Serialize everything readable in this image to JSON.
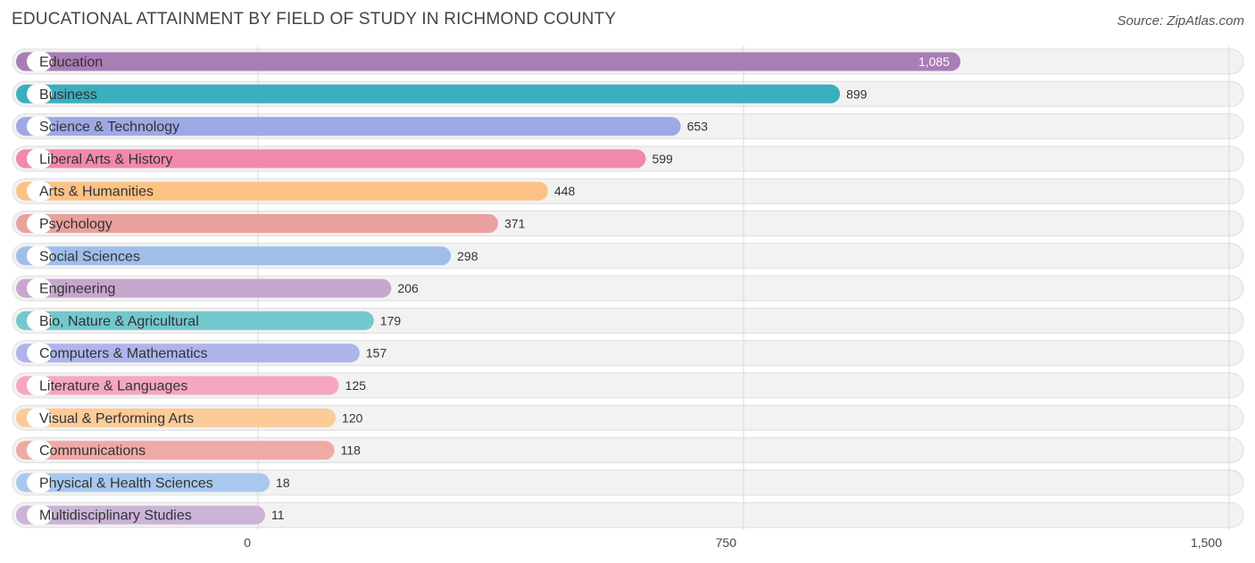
{
  "chart_data": {
    "type": "bar",
    "orientation": "horizontal",
    "title": "EDUCATIONAL ATTAINMENT BY FIELD OF STUDY IN RICHMOND COUNTY",
    "source": "Source: ZipAtlas.com",
    "categories": [
      "Education",
      "Business",
      "Science & Technology",
      "Liberal Arts & History",
      "Arts & Humanities",
      "Psychology",
      "Social Sciences",
      "Engineering",
      "Bio, Nature & Agricultural",
      "Computers & Mathematics",
      "Literature & Languages",
      "Visual & Performing Arts",
      "Communications",
      "Physical & Health Sciences",
      "Multidisciplinary Studies"
    ],
    "values": [
      1085,
      899,
      653,
      599,
      448,
      371,
      298,
      206,
      179,
      157,
      125,
      120,
      118,
      18,
      11
    ],
    "value_labels": [
      "1,085",
      "899",
      "653",
      "599",
      "448",
      "371",
      "298",
      "206",
      "179",
      "157",
      "125",
      "120",
      "118",
      "18",
      "11"
    ],
    "colors": [
      "#a97db6",
      "#3aafbe",
      "#9ea8e4",
      "#f288aa",
      "#fbc286",
      "#eaa19d",
      "#9fbfe9",
      "#c7a6cd",
      "#72c8cc",
      "#aeb4ec",
      "#f6a6c0",
      "#fbcb98",
      "#f0aaa5",
      "#a8c8ee",
      "#ccb3d8"
    ],
    "xlim": [
      0,
      1500
    ],
    "ticks": [
      0,
      750,
      1500
    ],
    "tick_labels": [
      "0",
      "750",
      "1,500"
    ],
    "grid": true,
    "xlabel": "",
    "ylabel": ""
  }
}
